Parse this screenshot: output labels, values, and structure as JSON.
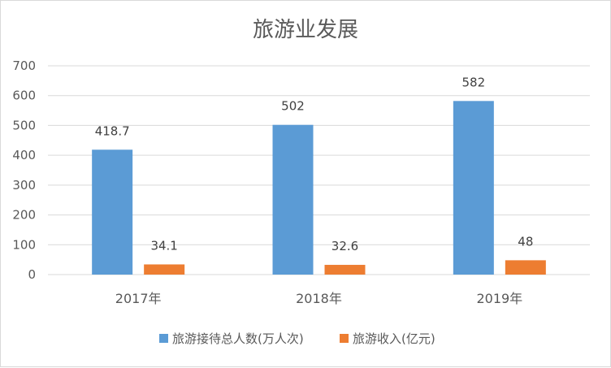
{
  "chart_data": {
    "type": "bar",
    "title": "旅游业发展",
    "categories": [
      "2017年",
      "2018年",
      "2019年"
    ],
    "series": [
      {
        "name": "旅游接待总人数(万人次)",
        "color": "#5b9bd5",
        "values": [
          418.7,
          502,
          582
        ],
        "labels": [
          "418.7",
          "502",
          "582"
        ]
      },
      {
        "name": "旅游收入(亿元)",
        "color": "#ed7d31",
        "values": [
          34.1,
          32.6,
          48
        ],
        "labels": [
          "34.1",
          "32.6",
          "48"
        ]
      }
    ],
    "yticks": [
      "0",
      "100",
      "200",
      "300",
      "400",
      "500",
      "600",
      "700"
    ],
    "ylim": [
      0,
      700
    ],
    "grid": true,
    "legend": "bottom"
  }
}
